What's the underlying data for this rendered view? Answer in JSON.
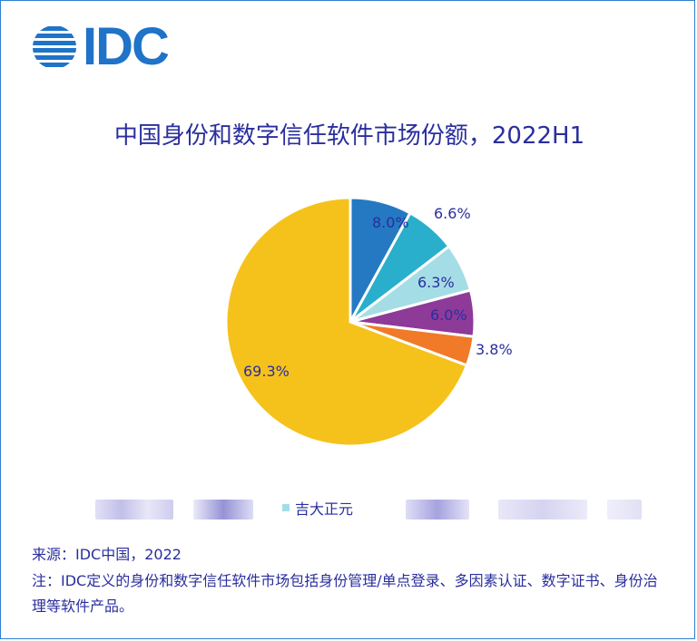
{
  "logo": {
    "text": "IDC"
  },
  "chart_data": {
    "type": "pie",
    "title": "中国身份和数字信任软件市场份额，2022H1",
    "slices": [
      {
        "label": "8.0%",
        "value": 8.0,
        "color": "#2479c2"
      },
      {
        "label": "6.6%",
        "value": 6.6,
        "color": "#29afcc"
      },
      {
        "label": "6.3%",
        "value": 6.3,
        "color": "#a5dde6"
      },
      {
        "label": "6.0%",
        "value": 6.0,
        "color": "#8e3a98"
      },
      {
        "label": "3.8%",
        "value": 3.8,
        "color": "#f07a28"
      },
      {
        "label": "69.3%",
        "value": 69.3,
        "color": "#f5c21b"
      }
    ],
    "legend": [
      {
        "name": "吉大正元",
        "color": "#a5dde6"
      }
    ]
  },
  "source": "来源：IDC中国，2022",
  "note": "注：IDC定义的身份和数字信任软件市场包括身份管理/单点登录、多因素认证、数字证书、身份治理等软件产品。"
}
